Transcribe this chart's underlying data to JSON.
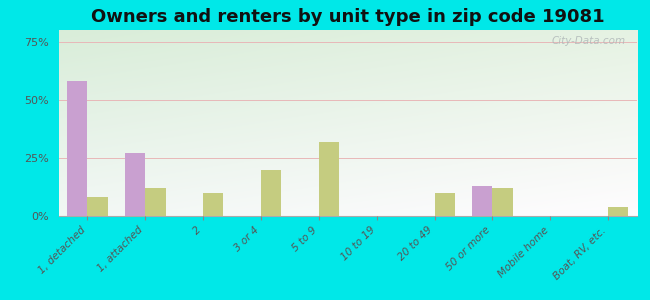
{
  "title": "Owners and renters by unit type in zip code 19081",
  "categories": [
    "1, detached",
    "1, attached",
    "2",
    "3 or 4",
    "5 to 9",
    "10 to 19",
    "20 to 49",
    "50 or more",
    "Mobile home",
    "Boat, RV, etc."
  ],
  "owner_values": [
    58,
    27,
    0,
    0,
    0,
    0,
    0,
    13,
    0,
    0
  ],
  "renter_values": [
    8,
    12,
    10,
    20,
    32,
    0,
    10,
    12,
    0,
    4
  ],
  "owner_color": "#c9a0d0",
  "renter_color": "#c5cc80",
  "background_outer": "#00e8e8",
  "ylabel_ticks": [
    "0%",
    "25%",
    "50%",
    "75%"
  ],
  "ytick_values": [
    0,
    25,
    50,
    75
  ],
  "ylim": [
    0,
    80
  ],
  "bar_width": 0.35,
  "title_fontsize": 13,
  "watermark": "City-Data.com"
}
